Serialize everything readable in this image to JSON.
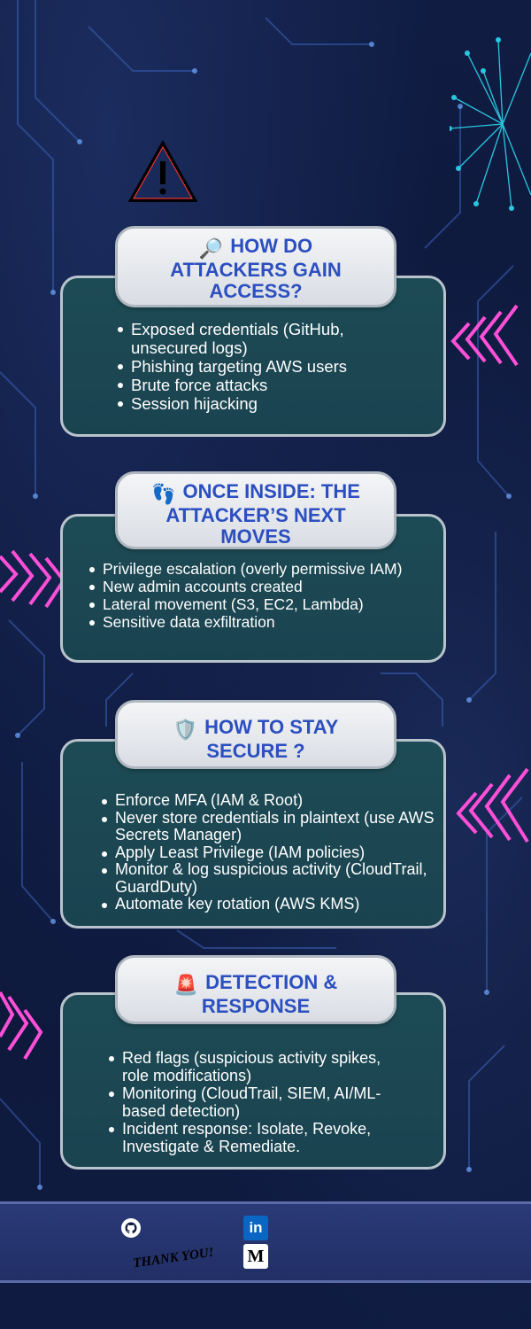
{
  "sections": [
    {
      "emoji": "🔎",
      "icon_name": "magnifier-icon",
      "title_lines": [
        "HOW DO",
        "ATTACKERS GAIN",
        "ACCESS?"
      ],
      "items": [
        "Exposed credentials (GitHub, unsecured logs)",
        "Phishing targeting AWS users",
        "Brute force attacks",
        "Session hijacking"
      ]
    },
    {
      "emoji": "👣",
      "icon_name": "footprints-icon",
      "title_lines": [
        "ONCE INSIDE: THE",
        "ATTACKER’S NEXT",
        "MOVES"
      ],
      "items": [
        "Privilege escalation (overly permissive IAM)",
        "New admin accounts created",
        "Lateral movement (S3, EC2, Lambda)",
        "Sensitive data exfiltration"
      ]
    },
    {
      "emoji": "🛡️",
      "icon_name": "shield-icon",
      "title_lines": [
        "HOW TO STAY",
        "SECURE ?"
      ],
      "items": [
        "Enforce MFA (IAM & Root)",
        "Never store credentials in plaintext (use AWS Secrets Manager)",
        "Apply Least Privilege (IAM policies)",
        "Monitor & log suspicious activity (CloudTrail, GuardDuty)",
        "Automate key rotation (AWS KMS)"
      ]
    },
    {
      "emoji": "🚨",
      "icon_name": "siren-icon",
      "title_lines": [
        "DETECTION &",
        "RESPONSE"
      ],
      "items": [
        "Red flags (suspicious activity spikes, role modifications)",
        "Monitoring (CloudTrail, SIEM, AI/ML-based detection)",
        "Incident response: Isolate, Revoke, Investigate & Remediate."
      ]
    }
  ],
  "footer": {
    "thank_you": "THANK YOU!",
    "linkedin_label": "in",
    "medium_label": "M"
  },
  "colors": {
    "background": "#0e1a3d",
    "card": "#1d4b55",
    "title": "#2c4fc0",
    "accent_pink": "#ff4fd8",
    "accent_cyan": "#29c6e0"
  }
}
